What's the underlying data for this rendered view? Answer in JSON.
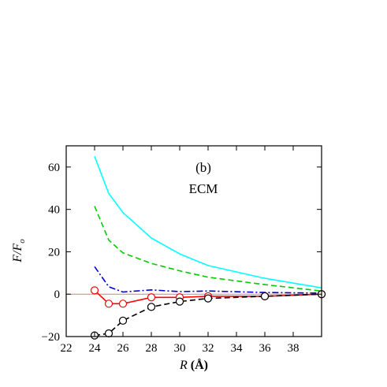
{
  "chart_data": {
    "type": "line",
    "panel_label": "(b)",
    "annotation": "ECM",
    "xlabel": "R (Å)",
    "xlabel_parts": {
      "var": "R",
      "unit": " (Å)"
    },
    "ylabel": "F/F_o",
    "ylabel_parts": {
      "num": "F/F",
      "sub": "o"
    },
    "xlim": [
      22,
      40
    ],
    "ylim": [
      -20,
      70
    ],
    "xticks": [
      22,
      24,
      26,
      28,
      30,
      32,
      34,
      36,
      38
    ],
    "yticks": [
      -20,
      0,
      20,
      40,
      60
    ],
    "series": [
      {
        "style": "solid",
        "color": "#00ffff",
        "markers": "none",
        "x": [
          24,
          25,
          26,
          28,
          30,
          32,
          36,
          40
        ],
        "y": [
          65,
          47.5,
          38.5,
          26.5,
          19,
          13.5,
          7.5,
          3
        ]
      },
      {
        "style": "dashed",
        "color": "#00cc00",
        "markers": "none",
        "x": [
          24,
          25,
          26,
          28,
          30,
          32,
          36,
          40
        ],
        "y": [
          41.5,
          25.5,
          19.5,
          14.5,
          11,
          8,
          4.5,
          1.5
        ]
      },
      {
        "style": "dash-dot",
        "color": "#0000cc",
        "markers": "none",
        "x": [
          24,
          25,
          26,
          28,
          30,
          32,
          36,
          40
        ],
        "y": [
          13,
          3.5,
          1,
          2,
          1.2,
          1.5,
          0.8,
          0.5
        ]
      },
      {
        "style": "solid",
        "color": "#ff0000",
        "markers": "open-circle",
        "x": [
          24,
          25,
          26,
          28,
          30,
          32,
          36,
          40
        ],
        "y": [
          1.8,
          -4.5,
          -4.5,
          -1.5,
          -1.5,
          -1,
          -1,
          0
        ]
      },
      {
        "style": "dashed",
        "color": "#000000",
        "markers": "open-circle",
        "x": [
          24,
          25,
          26,
          28,
          30,
          32,
          36,
          40
        ],
        "y": [
          -19.5,
          -18.5,
          -12.5,
          -6,
          -3.5,
          -2,
          -1,
          0
        ]
      }
    ],
    "reference_line": {
      "y": 0,
      "color": "#d08080"
    }
  }
}
